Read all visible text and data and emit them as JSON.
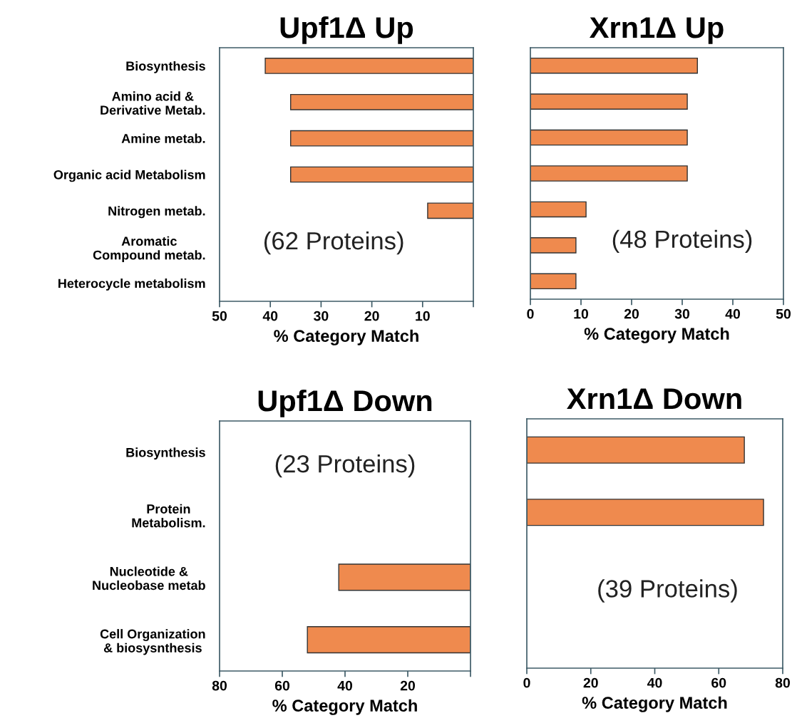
{
  "chart_data": [
    {
      "type": "bar",
      "orientation": "horizontal",
      "title": "Upf1Δ Up",
      "xlabel": "% Category Match",
      "categories": [
        "Biosynthesis",
        "Amino acid &\nDerivative Metab.",
        "Amine metab.",
        "Organic acid Metabolism",
        "Nitrogen metab.",
        "Aromatic\nCompound metab.",
        "Heterocycle metabolism"
      ],
      "values": [
        41,
        36,
        36,
        36,
        9,
        null,
        null
      ],
      "color": "#ef8a4e",
      "xlim": [
        50,
        0
      ],
      "xticks": [
        50,
        40,
        30,
        20,
        10,
        {
          "value": 0,
          "label": null
        }
      ],
      "annotations": [
        "(62 Proteins)"
      ]
    },
    {
      "type": "bar",
      "orientation": "horizontal",
      "title": "Xrn1Δ Up",
      "xlabel": "% Category Match",
      "categories": [
        null,
        null,
        null,
        null,
        null,
        null,
        null
      ],
      "values": [
        33,
        31,
        31,
        31,
        11,
        9,
        9
      ],
      "color": "#ef8a4e",
      "xlim": [
        0,
        50
      ],
      "xticks": [
        0,
        10,
        20,
        30,
        40,
        50
      ],
      "tick_labels": "x",
      "annotations": [
        "(48 Proteins)"
      ]
    },
    {
      "type": "bar",
      "orientation": "horizontal",
      "title": "Upf1Δ Down",
      "xlabel": "% Category Match",
      "categories": [
        "Biosynthesis",
        "Protein\nMetabolism.",
        "Nucleotide &\nNucleobase metab",
        "Cell Organization\n& biosysnthesis"
      ],
      "values": [
        null,
        null,
        42,
        52
      ],
      "color": "#ef8a4e",
      "xlim": [
        80,
        0
      ],
      "xticks": [
        80,
        60,
        40,
        20,
        {
          "value": 0,
          "label": null
        }
      ],
      "annotations": [
        "(23 Proteins)"
      ]
    },
    {
      "type": "bar",
      "orientation": "horizontal",
      "title": "Xrn1Δ Down",
      "xlabel": "% Category Match",
      "categories": [
        null,
        null,
        null,
        null
      ],
      "values": [
        68,
        74,
        null,
        null
      ],
      "color": "#ef8a4e",
      "xlim": [
        0,
        80
      ],
      "xticks": [
        0,
        20,
        40,
        60,
        80
      ],
      "tick_labels": "x",
      "annotations": [
        "(39 Proteins)"
      ]
    }
  ]
}
